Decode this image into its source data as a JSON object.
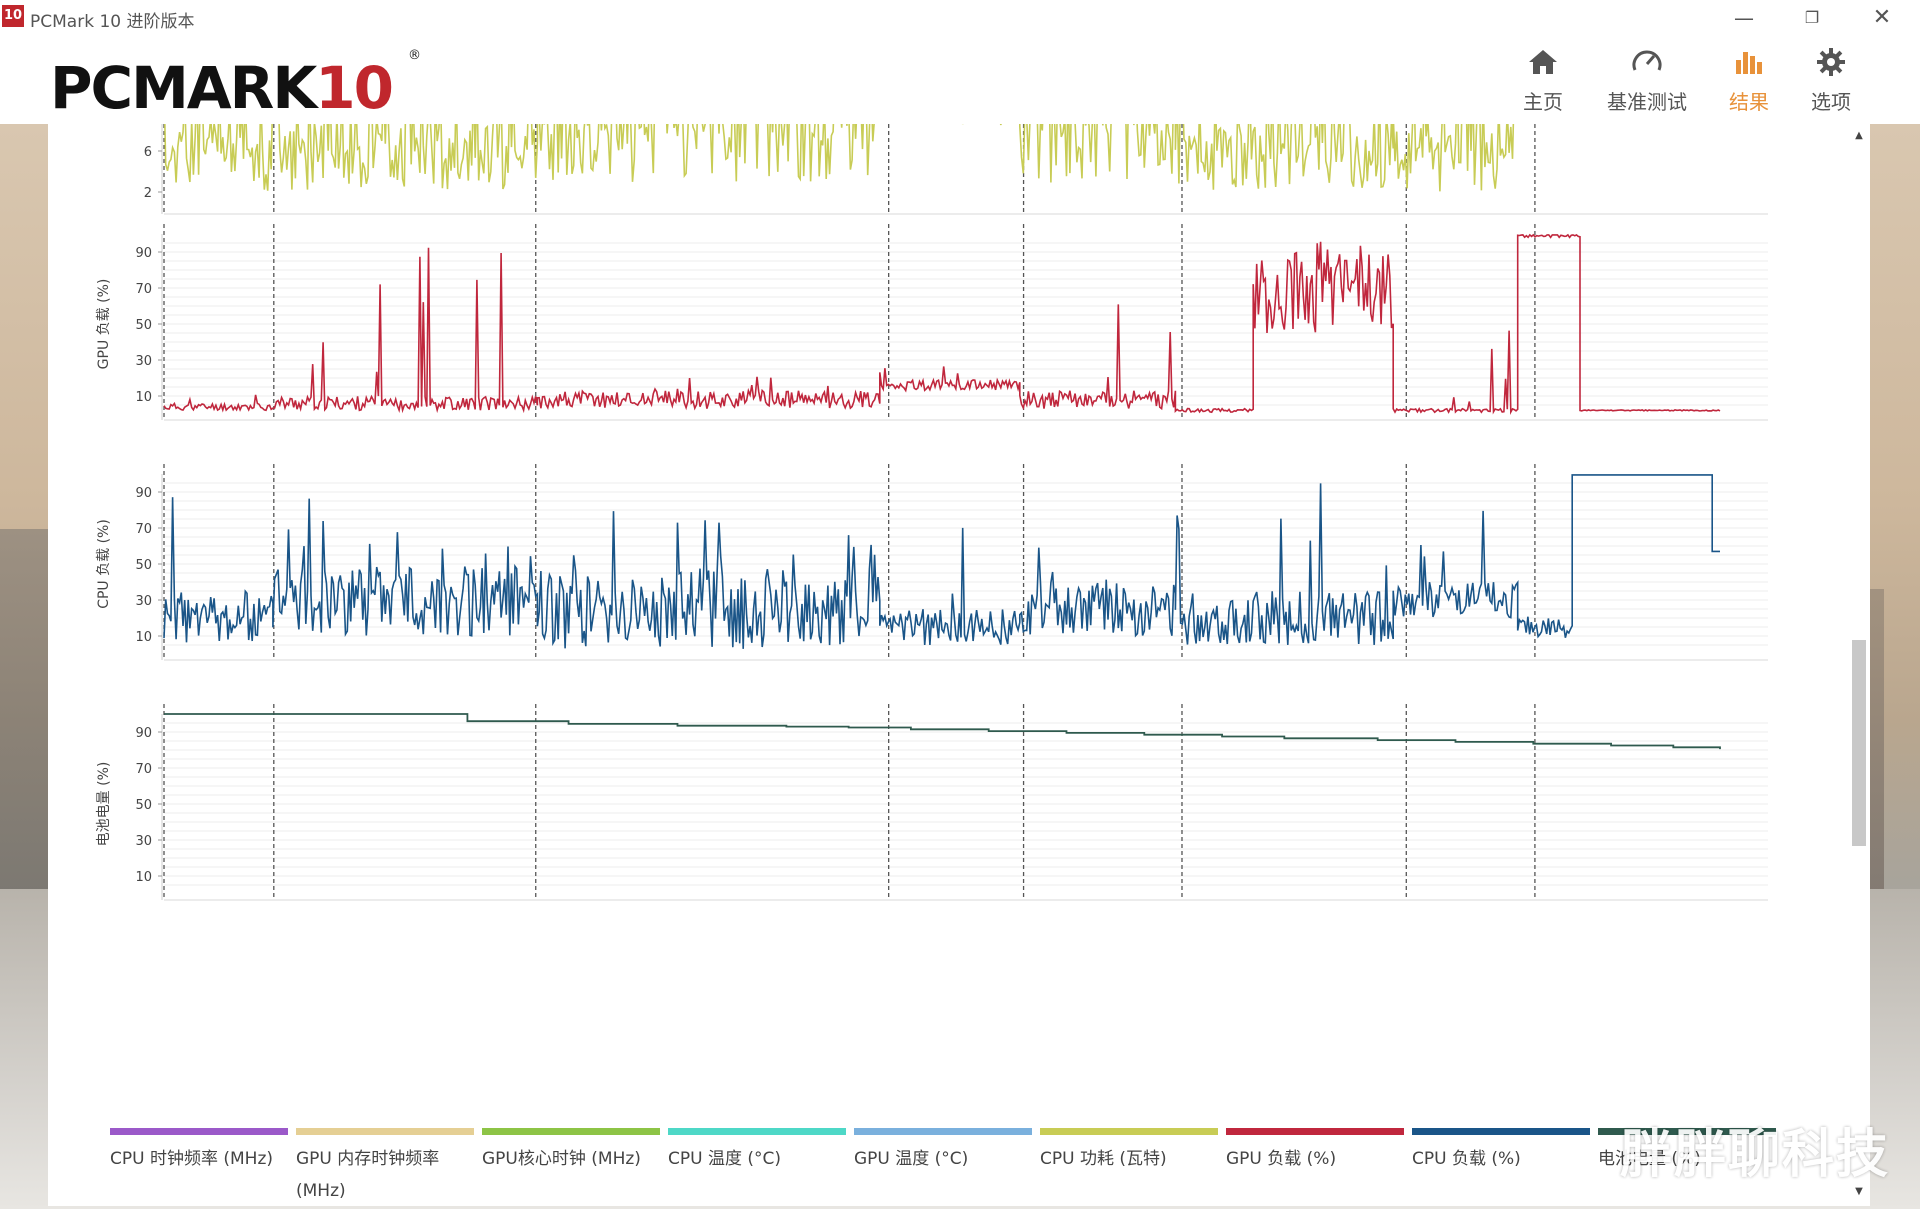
{
  "window": {
    "badge": "10",
    "title": "PCMark 10 进阶版本",
    "controls": {
      "minimize": "—",
      "maximize": "❐",
      "close": "✕"
    }
  },
  "header": {
    "logo_text": "PCMARK",
    "logo_number": "10",
    "logo_reg": "®",
    "nav": [
      {
        "label": "主页",
        "icon": "home-icon"
      },
      {
        "label": "基准测试",
        "icon": "gauge-icon"
      },
      {
        "label": "结果",
        "icon": "bar-chart-icon",
        "active": true
      },
      {
        "label": "选项",
        "icon": "gear-icon"
      }
    ]
  },
  "colors": {
    "cpu_power": "#c8cc55",
    "gpu_load": "#c0273d",
    "cpu_load": "#1a5588",
    "battery": "#2f5a4e",
    "accent": "#e8923a"
  },
  "chart_data": [
    {
      "type": "line",
      "series_name": "CPU 功耗 (瓦特)",
      "ylabel": "",
      "yticks": [
        2,
        6
      ],
      "partial_visible": true
    },
    {
      "type": "line",
      "series_name": "GPU 负载 (%)",
      "ylabel": "GPU 负载 (%)",
      "yticks": [
        10,
        30,
        50,
        70,
        90
      ],
      "ylim": [
        0,
        100
      ]
    },
    {
      "type": "line",
      "series_name": "CPU 负载 (%)",
      "ylabel": "CPU 负载 (%)",
      "yticks": [
        10,
        30,
        50,
        70,
        90
      ],
      "ylim": [
        0,
        100
      ]
    },
    {
      "type": "line",
      "series_name": "电池电量 (%)",
      "ylabel": "电池电量 (%)",
      "yticks": [
        10,
        30,
        50,
        70,
        90
      ],
      "ylim": [
        0,
        100
      ],
      "x": [
        0,
        0.19,
        0.195,
        0.26,
        0.33,
        0.4,
        0.44,
        0.48,
        0.53,
        0.58,
        0.63,
        0.68,
        0.72,
        0.78,
        0.83,
        0.88,
        0.93,
        0.97,
        1.0
      ],
      "values": [
        100,
        100,
        96,
        94.5,
        93.5,
        93,
        92.5,
        91.5,
        90.5,
        89.5,
        88.5,
        87.5,
        86.5,
        85.5,
        84.5,
        83.5,
        82.5,
        81.5,
        80.5
      ]
    }
  ],
  "phase_markers": [
    0.0,
    0.07,
    0.237,
    0.462,
    0.548,
    0.649,
    0.792,
    0.874
  ],
  "legend": [
    {
      "label": "CPU 时钟频率 (MHz)",
      "color": "#9b59c9"
    },
    {
      "label": "GPU 内存时钟频率 (MHz)",
      "color": "#e5cf94"
    },
    {
      "label": "GPU核心时钟 (MHz)",
      "color": "#8dc446"
    },
    {
      "label": "CPU 温度 (°C)",
      "color": "#4ed8c7"
    },
    {
      "label": "GPU 温度 (°C)",
      "color": "#7ab0dd"
    },
    {
      "label": "CPU 功耗 (瓦特)",
      "color": "#c8cc55"
    },
    {
      "label": "GPU 负载 (%)",
      "color": "#c0273d"
    },
    {
      "label": "CPU 负载 (%)",
      "color": "#1a5588"
    },
    {
      "label": "电池电量 (%)",
      "color": "#2f5a4e"
    }
  ],
  "watermark": "胖胖聊科技"
}
